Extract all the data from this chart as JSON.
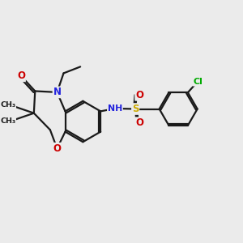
{
  "bg_color": "#ebebeb",
  "bond_color": "#1a1a1a",
  "atom_colors": {
    "O": "#cc0000",
    "N": "#2222dd",
    "S": "#ccaa00",
    "Cl": "#00aa00",
    "NH": "#2222dd"
  },
  "figsize": [
    3.0,
    3.0
  ],
  "dpi": 100
}
